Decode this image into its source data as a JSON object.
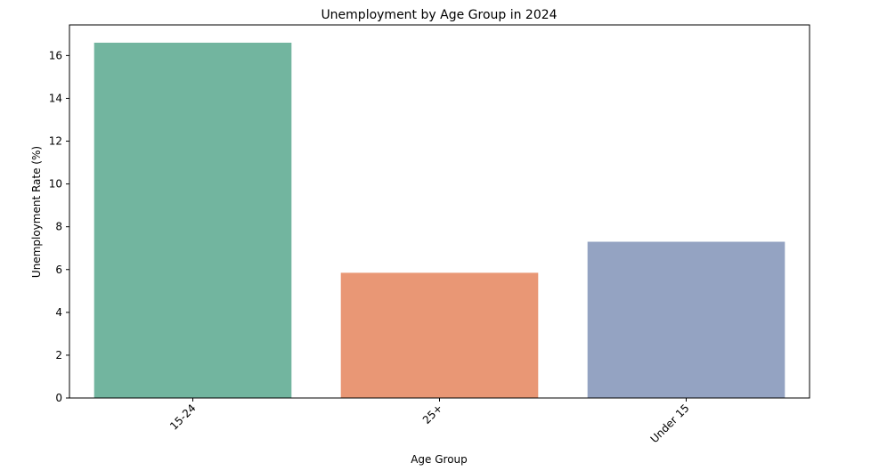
{
  "chart_data": {
    "type": "bar",
    "title": "Unemployment by Age Group in 2024",
    "xlabel": "Age Group",
    "ylabel": "Unemployment Rate (%)",
    "categories": [
      "15-24",
      "25+",
      "Under 15"
    ],
    "values": [
      16.6,
      5.85,
      7.3
    ],
    "colors": [
      "#72b59f",
      "#e99775",
      "#94a3c2"
    ],
    "ylim": [
      0,
      17.43
    ],
    "yticks": [
      0,
      2,
      4,
      6,
      8,
      10,
      12,
      14,
      16
    ],
    "ytick_labels": [
      "0",
      "2",
      "4",
      "6",
      "8",
      "10",
      "12",
      "14",
      "16"
    ],
    "grid": false,
    "legend": "none"
  }
}
